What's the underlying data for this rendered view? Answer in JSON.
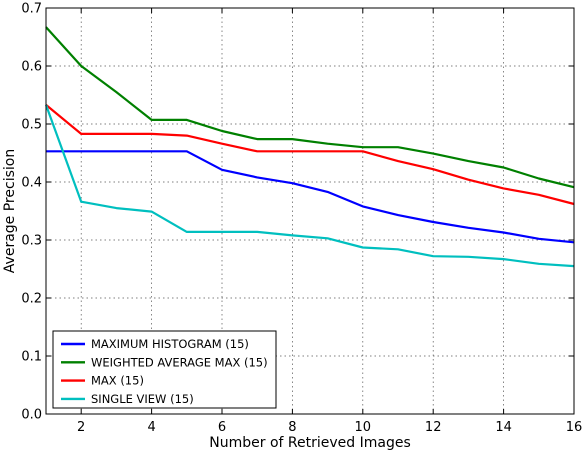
{
  "chart_data": {
    "type": "line",
    "xlabel": "Number of Retrieved Images",
    "ylabel": "Average Precision",
    "xlim": [
      1,
      16
    ],
    "ylim": [
      0.0,
      0.7
    ],
    "xticks": [
      2,
      4,
      6,
      8,
      10,
      12,
      14,
      16
    ],
    "yticks": [
      0.0,
      0.1,
      0.2,
      0.3,
      0.4,
      0.5,
      0.6,
      0.7
    ],
    "grid": true,
    "legend_position": "lower-left",
    "x": [
      1,
      2,
      3,
      4,
      5,
      6,
      7,
      8,
      9,
      10,
      11,
      12,
      13,
      14,
      15,
      16
    ],
    "series": [
      {
        "name": "MAXIMUM HISTOGRAM (15)",
        "color": "#0000ff",
        "values": [
          0.453,
          0.453,
          0.453,
          0.453,
          0.453,
          0.421,
          0.408,
          0.398,
          0.383,
          0.358,
          0.343,
          0.331,
          0.321,
          0.313,
          0.302,
          0.296
        ]
      },
      {
        "name": "WEIGHTED AVERAGE MAX (15)",
        "color": "#008000",
        "values": [
          0.667,
          0.6,
          0.555,
          0.507,
          0.507,
          0.488,
          0.474,
          0.474,
          0.466,
          0.46,
          0.46,
          0.449,
          0.436,
          0.425,
          0.406,
          0.391
        ]
      },
      {
        "name": "MAX (15)",
        "color": "#ff0000",
        "values": [
          0.533,
          0.483,
          0.483,
          0.483,
          0.48,
          0.466,
          0.453,
          0.453,
          0.453,
          0.453,
          0.436,
          0.422,
          0.404,
          0.389,
          0.378,
          0.362
        ]
      },
      {
        "name": "SINGLE VIEW (15)",
        "color": "#00bfbf",
        "values": [
          0.533,
          0.366,
          0.355,
          0.349,
          0.314,
          0.314,
          0.314,
          0.308,
          0.303,
          0.287,
          0.284,
          0.272,
          0.271,
          0.267,
          0.259,
          0.255
        ]
      }
    ]
  }
}
